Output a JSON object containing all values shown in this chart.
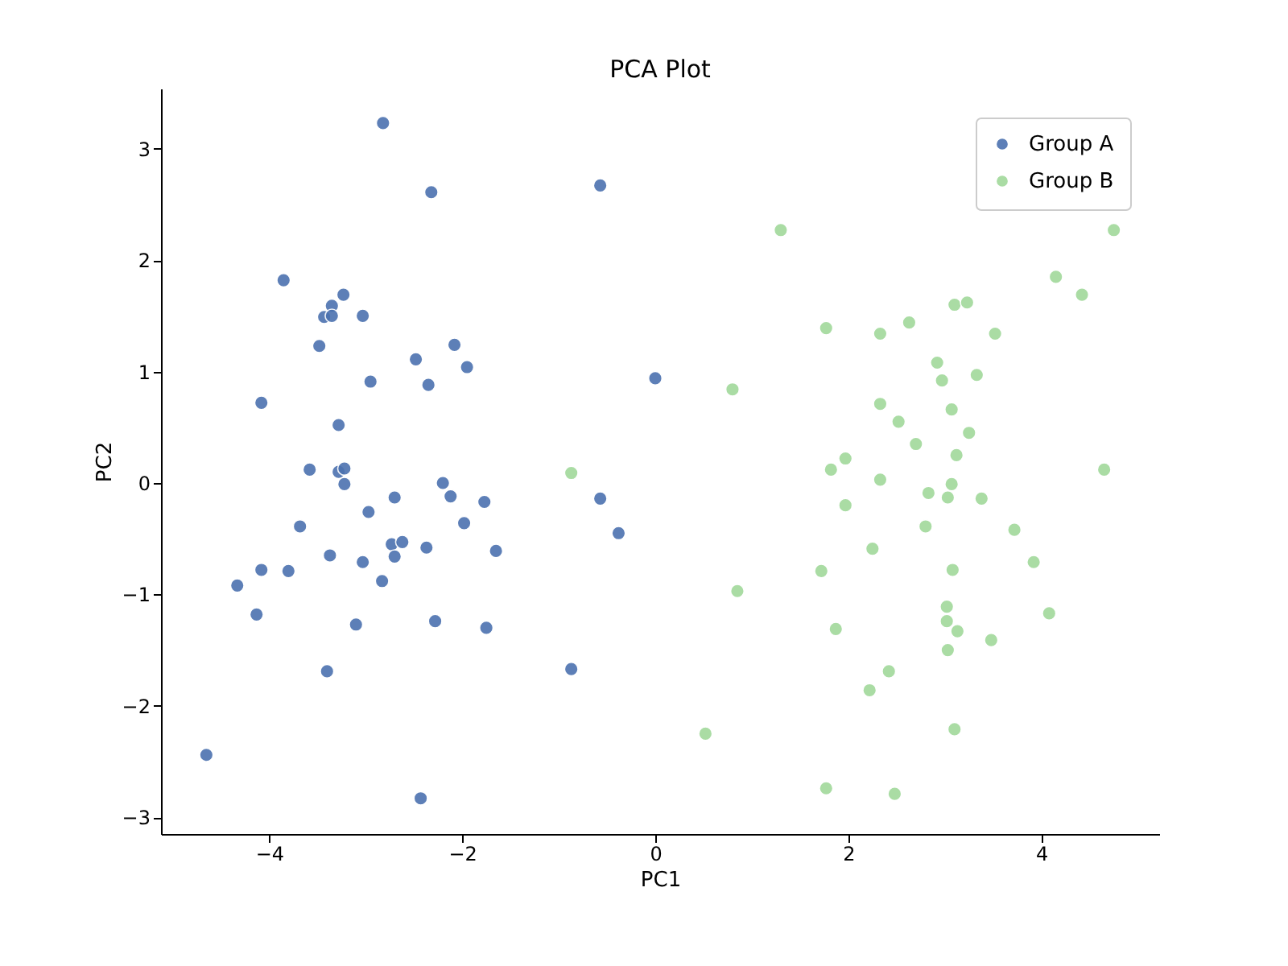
{
  "chart_data": {
    "type": "scatter",
    "title": "PCA Plot",
    "xlabel": "PC1",
    "ylabel": "PC2",
    "xlim": [
      -5.12,
      5.22
    ],
    "ylim": [
      -3.15,
      3.54
    ],
    "xticks": [
      -4,
      -2,
      0,
      2,
      4
    ],
    "yticks": [
      -3,
      -2,
      -1,
      0,
      1,
      2,
      3
    ],
    "grid": false,
    "legend": "top right",
    "marker": "circle",
    "series": [
      {
        "name": "Group A",
        "color": "#4c72b0",
        "x": [
          -2.82,
          -2.32,
          -0.57,
          -3.85,
          -3.23,
          -3.35,
          -3.43,
          -3.35,
          -3.03,
          -3.48,
          -2.08,
          -2.48,
          -1.95,
          -2.95,
          -2.35,
          0.0,
          -4.08,
          -3.28,
          -3.58,
          -3.28,
          -3.22,
          -3.22,
          -2.2,
          -2.12,
          -1.77,
          -2.7,
          -0.57,
          -2.97,
          -1.98,
          -3.68,
          -0.38,
          -2.73,
          -2.62,
          -2.37,
          -1.65,
          -3.37,
          -2.7,
          -3.03,
          -4.08,
          -3.8,
          -2.83,
          -4.33,
          -4.13,
          -3.1,
          -2.28,
          -1.75,
          -3.4,
          -0.87,
          -4.65,
          -2.43
        ],
        "values": [
          3.23,
          2.61,
          2.67,
          1.82,
          1.69,
          1.59,
          1.49,
          1.5,
          1.5,
          1.23,
          1.24,
          1.11,
          1.04,
          0.91,
          0.88,
          0.94,
          0.72,
          0.52,
          0.12,
          0.1,
          0.13,
          -0.01,
          0.0,
          -0.12,
          -0.17,
          -0.13,
          -0.14,
          -0.26,
          -0.36,
          -0.39,
          -0.45,
          -0.55,
          -0.53,
          -0.58,
          -0.61,
          -0.65,
          -0.66,
          -0.71,
          -0.78,
          -0.79,
          -0.88,
          -0.92,
          -1.18,
          -1.27,
          -1.24,
          -1.3,
          -1.69,
          -1.67,
          -2.44,
          -2.83
        ]
      },
      {
        "name": "Group B",
        "color": "#a1d99b",
        "x": [
          1.3,
          4.75,
          4.15,
          4.42,
          3.1,
          3.23,
          1.77,
          2.63,
          2.33,
          3.52,
          2.92,
          3.33,
          2.97,
          0.8,
          2.33,
          3.07,
          2.52,
          3.25,
          2.7,
          1.97,
          3.12,
          1.82,
          4.65,
          -0.87,
          2.33,
          3.07,
          1.97,
          2.83,
          3.03,
          3.38,
          2.8,
          3.72,
          2.25,
          3.92,
          1.72,
          3.08,
          0.85,
          3.02,
          4.08,
          3.02,
          1.87,
          3.13,
          3.48,
          3.03,
          2.42,
          2.22,
          3.1,
          0.52,
          1.77,
          2.48
        ],
        "values": [
          2.27,
          2.27,
          1.85,
          1.69,
          1.6,
          1.62,
          1.39,
          1.44,
          1.34,
          1.34,
          1.08,
          0.97,
          0.92,
          0.84,
          0.71,
          0.66,
          0.55,
          0.45,
          0.35,
          0.22,
          0.25,
          0.12,
          0.12,
          0.09,
          0.03,
          -0.01,
          -0.2,
          -0.09,
          -0.13,
          -0.14,
          -0.39,
          -0.42,
          -0.59,
          -0.71,
          -0.79,
          -0.78,
          -0.97,
          -1.11,
          -1.17,
          -1.24,
          -1.31,
          -1.33,
          -1.41,
          -1.5,
          -1.69,
          -1.86,
          -2.21,
          -2.25,
          -2.74,
          -2.79
        ]
      }
    ]
  }
}
